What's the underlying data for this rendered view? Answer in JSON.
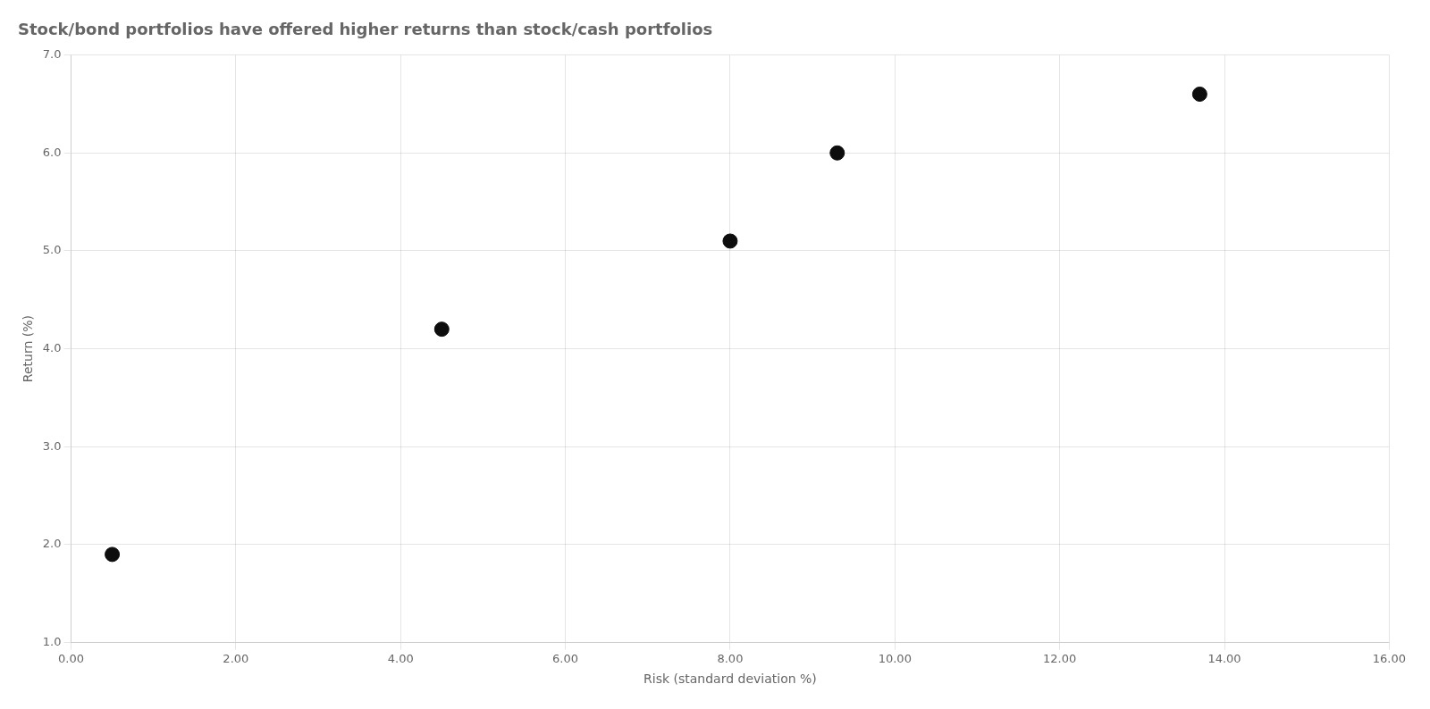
{
  "chart_data": {
    "type": "scatter",
    "title": "Stock/bond portfolios have offered higher returns than stock/cash portfolios",
    "xlabel": "Risk (standard deviation %)",
    "ylabel": "Return (%)",
    "x": [
      0.5,
      4.5,
      8.0,
      9.3,
      13.7
    ],
    "values": [
      1.9,
      4.2,
      5.1,
      6.0,
      6.6
    ],
    "color": "#0d0d0d",
    "xlim": [
      0.0,
      16.0
    ],
    "ylim": [
      1.0,
      7.0
    ],
    "xticks": [
      {
        "value": 0,
        "label": "0.00"
      },
      {
        "value": 2,
        "label": "2.00"
      },
      {
        "value": 4,
        "label": "4.00"
      },
      {
        "value": 6,
        "label": "6.00"
      },
      {
        "value": 8,
        "label": "8.00"
      },
      {
        "value": 10,
        "label": "10.00"
      },
      {
        "value": 12,
        "label": "12.00"
      },
      {
        "value": 14,
        "label": "14.00"
      },
      {
        "value": 16,
        "label": "16.00"
      }
    ],
    "yticks": [
      {
        "value": 1,
        "label": "1.0"
      },
      {
        "value": 2,
        "label": "2.0"
      },
      {
        "value": 3,
        "label": "3.0"
      },
      {
        "value": 4,
        "label": "4.0"
      },
      {
        "value": 5,
        "label": "5.0"
      },
      {
        "value": 6,
        "label": "6.0"
      },
      {
        "value": 7,
        "label": "7.0"
      }
    ],
    "grid": true
  }
}
